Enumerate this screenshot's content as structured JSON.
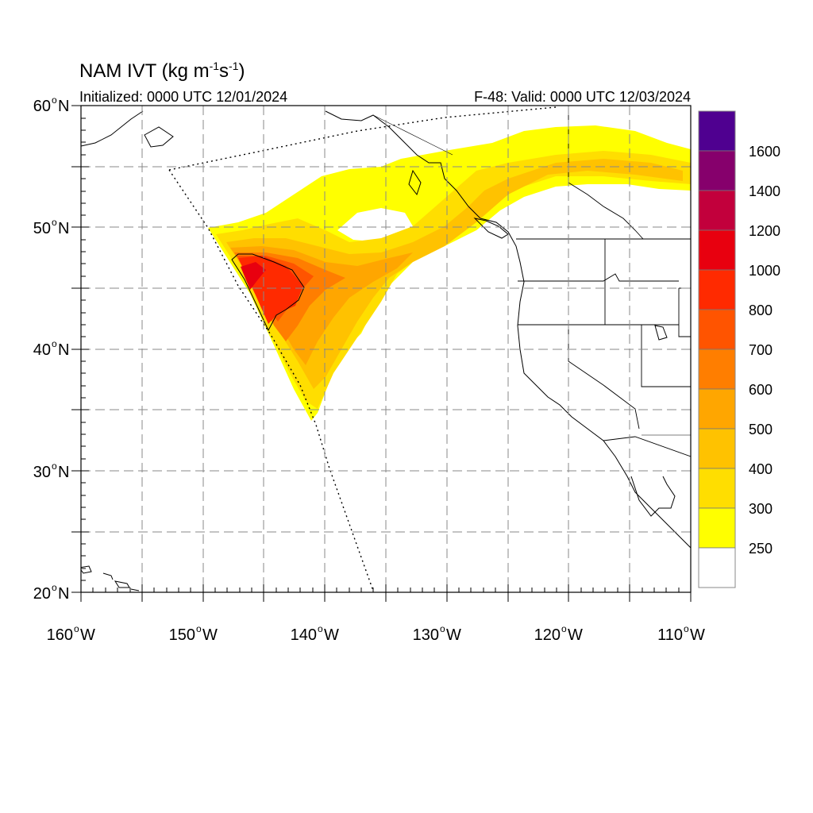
{
  "header": {
    "title_main": "NAM IVT (kg m",
    "title_sup1": "-1",
    "title_mid": "s",
    "title_sup2": "-1",
    "title_end": ")",
    "initialized": "Initialized: 0000 UTC 12/01/2024",
    "valid": "F-48: Valid: 0000 UTC 12/03/2024"
  },
  "axes": {
    "lat_labels": [
      "60",
      "50",
      "40",
      "30",
      "20"
    ],
    "lat_hemi": "N",
    "lon_labels": [
      "160",
      "150",
      "140",
      "130",
      "120",
      "110"
    ],
    "lon_hemi": "W",
    "degree_symbol": "o",
    "lon_range": [
      -160,
      -110
    ],
    "lat_range": [
      20,
      60
    ],
    "grid": "dashed every 5 degrees"
  },
  "colorbar": {
    "labels": [
      "1600",
      "1400",
      "1200",
      "1000",
      "800",
      "700",
      "600",
      "500",
      "400",
      "300",
      "250"
    ],
    "colors": [
      "#4f0090",
      "#86006c",
      "#c2003c",
      "#e8000f",
      "#ff2a00",
      "#ff5400",
      "#ff7e00",
      "#ffa600",
      "#ffc200",
      "#ffde00",
      "#ffff00",
      "#ffffff"
    ]
  },
  "shading": {
    "c250": "#ffff00",
    "c300": "#ffde00",
    "c400": "#ffc200",
    "c500": "#ffa600",
    "c600": "#ff7e00",
    "c700": "#ff5400",
    "c800": "#ff2a00",
    "c1000": "#e8000f"
  }
}
